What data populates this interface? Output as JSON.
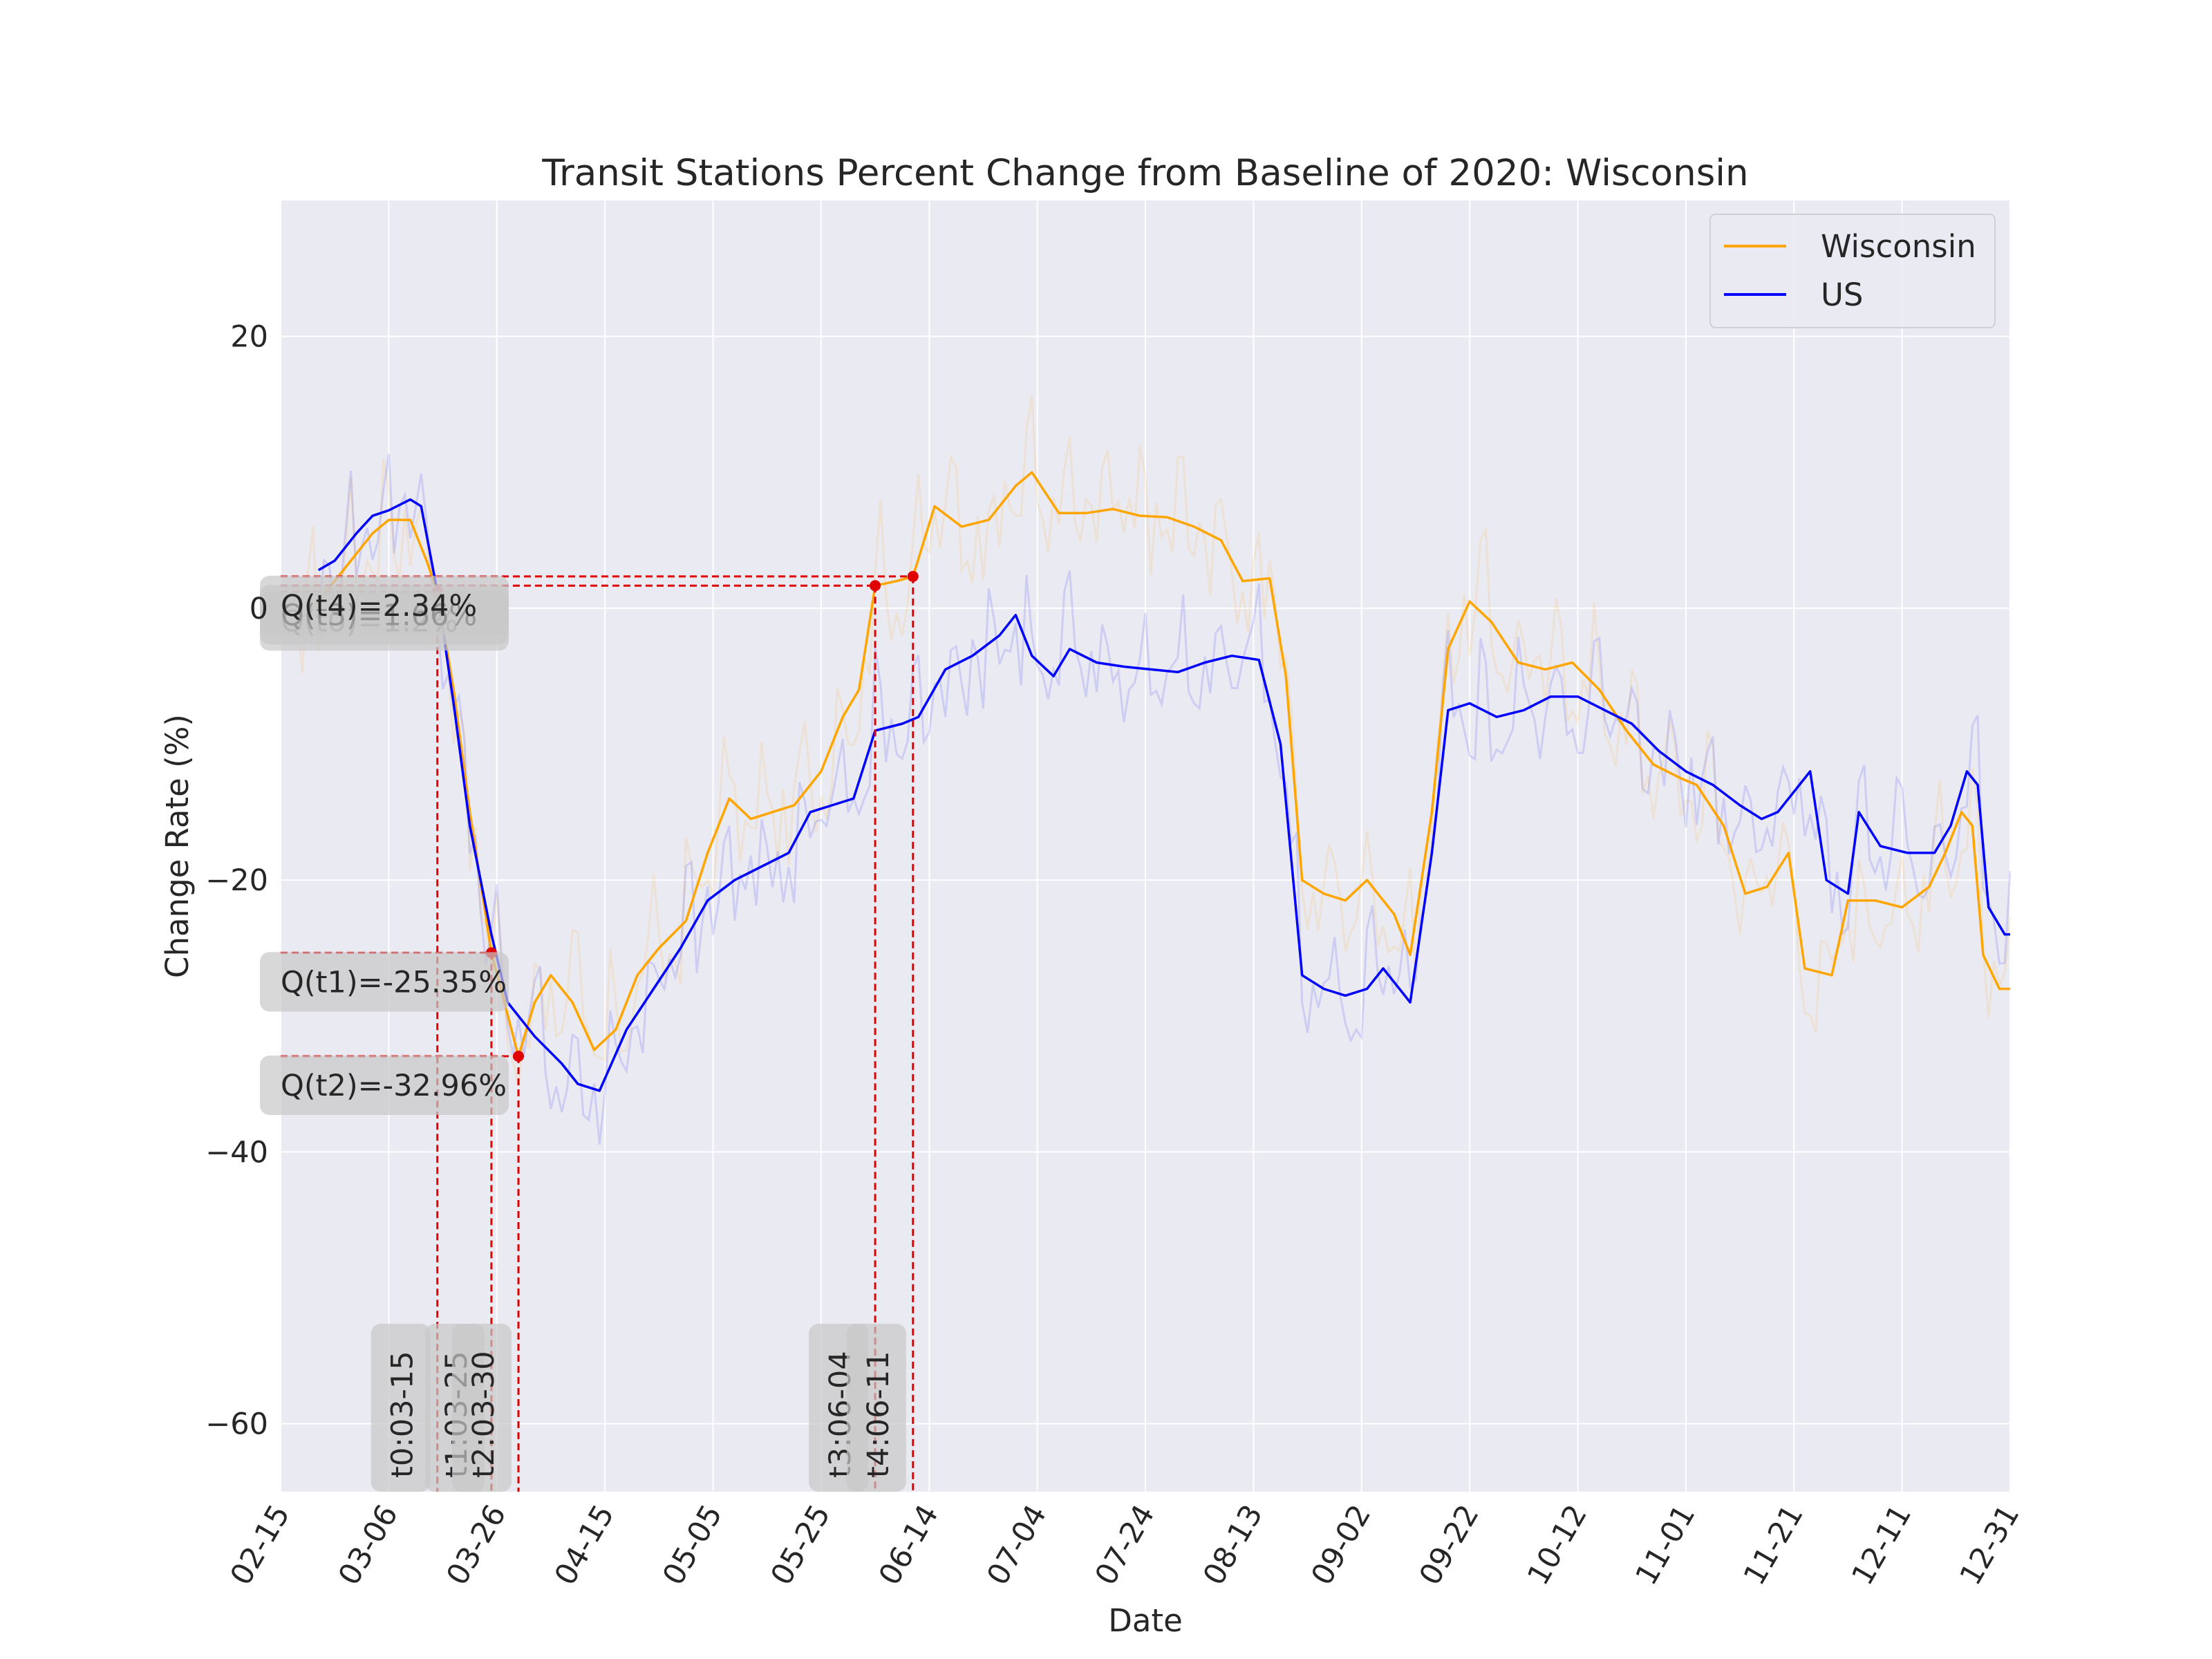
{
  "chart_data": {
    "type": "line",
    "title": "Transit Stations Percent Change from Baseline of 2020: Wisconsin",
    "xlabel": "Date",
    "ylabel": "Change Rate (%)",
    "x_range": [
      "2020-02-15",
      "2020-12-31"
    ],
    "ylim": [
      -65,
      30
    ],
    "x_ticks": [
      "02-15",
      "03-06",
      "03-26",
      "04-15",
      "05-05",
      "05-25",
      "06-14",
      "07-04",
      "07-24",
      "08-13",
      "09-02",
      "09-22",
      "10-12",
      "11-01",
      "11-21",
      "12-11",
      "12-31"
    ],
    "y_ticks": [
      20,
      0,
      -20,
      -40,
      -60
    ],
    "y_tick_labels": [
      "20",
      "0",
      "−20",
      "−40",
      "−60"
    ],
    "grid": true,
    "legend_position": "top-right",
    "series": [
      {
        "name": "Wisconsin",
        "color": "#FFA500",
        "smoothed": [
          [
            "2020-02-17",
            -1.5
          ],
          [
            "2020-02-22",
            0.5
          ],
          [
            "2020-02-27",
            3
          ],
          [
            "2020-03-03",
            5.5
          ],
          [
            "2020-03-06",
            6.5
          ],
          [
            "2020-03-10",
            6.5
          ],
          [
            "2020-03-13",
            3.5
          ],
          [
            "2020-03-15",
            1.2
          ],
          [
            "2020-03-18",
            -6
          ],
          [
            "2020-03-21",
            -15
          ],
          [
            "2020-03-25",
            -25.35
          ],
          [
            "2020-03-30",
            -32.96
          ],
          [
            "2020-04-02",
            -29
          ],
          [
            "2020-04-05",
            -27
          ],
          [
            "2020-04-09",
            -29
          ],
          [
            "2020-04-13",
            -32.5
          ],
          [
            "2020-04-17",
            -31
          ],
          [
            "2020-04-21",
            -27
          ],
          [
            "2020-04-25",
            -25
          ],
          [
            "2020-04-30",
            -23
          ],
          [
            "2020-05-04",
            -18
          ],
          [
            "2020-05-08",
            -14
          ],
          [
            "2020-05-12",
            -15.5
          ],
          [
            "2020-05-16",
            -15
          ],
          [
            "2020-05-20",
            -14.5
          ],
          [
            "2020-05-25",
            -12
          ],
          [
            "2020-05-29",
            -8
          ],
          [
            "2020-06-01",
            -6
          ],
          [
            "2020-06-04",
            1.66
          ],
          [
            "2020-06-08",
            2
          ],
          [
            "2020-06-11",
            2.34
          ],
          [
            "2020-06-15",
            7.5
          ],
          [
            "2020-06-20",
            6
          ],
          [
            "2020-06-25",
            6.5
          ],
          [
            "2020-06-30",
            9
          ],
          [
            "2020-07-03",
            10
          ],
          [
            "2020-07-08",
            7
          ],
          [
            "2020-07-13",
            7
          ],
          [
            "2020-07-18",
            7.3
          ],
          [
            "2020-07-23",
            6.8
          ],
          [
            "2020-07-28",
            6.7
          ],
          [
            "2020-08-02",
            6
          ],
          [
            "2020-08-07",
            5
          ],
          [
            "2020-08-11",
            2
          ],
          [
            "2020-08-16",
            2.2
          ],
          [
            "2020-08-19",
            -5
          ],
          [
            "2020-08-22",
            -20
          ],
          [
            "2020-08-26",
            -21
          ],
          [
            "2020-08-30",
            -21.5
          ],
          [
            "2020-09-03",
            -20
          ],
          [
            "2020-09-08",
            -22.5
          ],
          [
            "2020-09-11",
            -25.5
          ],
          [
            "2020-09-15",
            -15
          ],
          [
            "2020-09-18",
            -3
          ],
          [
            "2020-09-22",
            0.5
          ],
          [
            "2020-09-26",
            -1
          ],
          [
            "2020-10-01",
            -4
          ],
          [
            "2020-10-06",
            -4.5
          ],
          [
            "2020-10-11",
            -4
          ],
          [
            "2020-10-16",
            -6
          ],
          [
            "2020-10-21",
            -9
          ],
          [
            "2020-10-26",
            -11.5
          ],
          [
            "2020-10-31",
            -12.5
          ],
          [
            "2020-11-03",
            -13
          ],
          [
            "2020-11-08",
            -16
          ],
          [
            "2020-11-12",
            -21
          ],
          [
            "2020-11-16",
            -20.5
          ],
          [
            "2020-11-20",
            -18
          ],
          [
            "2020-11-23",
            -26.5
          ],
          [
            "2020-11-28",
            -27
          ],
          [
            "2020-12-01",
            -21.5
          ],
          [
            "2020-12-06",
            -21.5
          ],
          [
            "2020-12-11",
            -22
          ],
          [
            "2020-12-16",
            -20.5
          ],
          [
            "2020-12-19",
            -18
          ],
          [
            "2020-12-22",
            -15
          ],
          [
            "2020-12-24",
            -16
          ],
          [
            "2020-12-26",
            -25.5
          ],
          [
            "2020-12-29",
            -28
          ],
          [
            "2020-12-31",
            -28
          ]
        ]
      },
      {
        "name": "US",
        "color": "#0000FF",
        "smoothed": [
          [
            "2020-02-22",
            2.8
          ],
          [
            "2020-02-25",
            3.5
          ],
          [
            "2020-02-29",
            5.5
          ],
          [
            "2020-03-03",
            6.8
          ],
          [
            "2020-03-06",
            7.2
          ],
          [
            "2020-03-10",
            8
          ],
          [
            "2020-03-12",
            7.5
          ],
          [
            "2020-03-15",
            1.2
          ],
          [
            "2020-03-18",
            -7
          ],
          [
            "2020-03-21",
            -16
          ],
          [
            "2020-03-25",
            -24
          ],
          [
            "2020-03-28",
            -29
          ],
          [
            "2020-04-02",
            -31.5
          ],
          [
            "2020-04-07",
            -33.5
          ],
          [
            "2020-04-10",
            -35
          ],
          [
            "2020-04-14",
            -35.5
          ],
          [
            "2020-04-19",
            -31
          ],
          [
            "2020-04-24",
            -28
          ],
          [
            "2020-04-29",
            -25
          ],
          [
            "2020-05-04",
            -21.5
          ],
          [
            "2020-05-09",
            -20
          ],
          [
            "2020-05-14",
            -19
          ],
          [
            "2020-05-19",
            -18
          ],
          [
            "2020-05-23",
            -15
          ],
          [
            "2020-05-27",
            -14.5
          ],
          [
            "2020-05-31",
            -14
          ],
          [
            "2020-06-04",
            -9
          ],
          [
            "2020-06-09",
            -8.5
          ],
          [
            "2020-06-12",
            -8
          ],
          [
            "2020-06-17",
            -4.5
          ],
          [
            "2020-06-22",
            -3.5
          ],
          [
            "2020-06-27",
            -2
          ],
          [
            "2020-06-30",
            -0.5
          ],
          [
            "2020-07-03",
            -3.5
          ],
          [
            "2020-07-07",
            -5
          ],
          [
            "2020-07-10",
            -3
          ],
          [
            "2020-07-15",
            -4
          ],
          [
            "2020-07-20",
            -4.3
          ],
          [
            "2020-07-25",
            -4.5
          ],
          [
            "2020-07-30",
            -4.7
          ],
          [
            "2020-08-04",
            -4
          ],
          [
            "2020-08-09",
            -3.5
          ],
          [
            "2020-08-14",
            -3.8
          ],
          [
            "2020-08-18",
            -10
          ],
          [
            "2020-08-22",
            -27
          ],
          [
            "2020-08-26",
            -28
          ],
          [
            "2020-08-30",
            -28.5
          ],
          [
            "2020-09-03",
            -28
          ],
          [
            "2020-09-06",
            -26.5
          ],
          [
            "2020-09-11",
            -29
          ],
          [
            "2020-09-15",
            -18
          ],
          [
            "2020-09-18",
            -7.5
          ],
          [
            "2020-09-22",
            -7
          ],
          [
            "2020-09-27",
            -8
          ],
          [
            "2020-10-02",
            -7.5
          ],
          [
            "2020-10-07",
            -6.5
          ],
          [
            "2020-10-12",
            -6.5
          ],
          [
            "2020-10-17",
            -7.5
          ],
          [
            "2020-10-22",
            -8.5
          ],
          [
            "2020-10-27",
            -10.5
          ],
          [
            "2020-11-01",
            -12
          ],
          [
            "2020-11-06",
            -13
          ],
          [
            "2020-11-11",
            -14.5
          ],
          [
            "2020-11-15",
            -15.5
          ],
          [
            "2020-11-18",
            -15
          ],
          [
            "2020-11-22",
            -13
          ],
          [
            "2020-11-24",
            -12
          ],
          [
            "2020-11-27",
            -20
          ],
          [
            "2020-12-01",
            -21
          ],
          [
            "2020-12-03",
            -15
          ],
          [
            "2020-12-07",
            -17.5
          ],
          [
            "2020-12-12",
            -18
          ],
          [
            "2020-12-17",
            -18
          ],
          [
            "2020-12-20",
            -16
          ],
          [
            "2020-12-23",
            -12
          ],
          [
            "2020-12-25",
            -13
          ],
          [
            "2020-12-27",
            -22
          ],
          [
            "2020-12-30",
            -24
          ],
          [
            "2020-12-31",
            -24
          ]
        ]
      }
    ],
    "annotations": [
      {
        "id": "t0",
        "date": "2020-03-15",
        "value": 1.2,
        "label_x": "t0:03-15",
        "label_y": "Q(t0)=1.2%"
      },
      {
        "id": "t1",
        "date": "2020-03-25",
        "value": -25.35,
        "label_x": "t1:03-25",
        "label_y": "Q(t1)=-25.35%"
      },
      {
        "id": "t2",
        "date": "2020-03-30",
        "value": -32.96,
        "label_x": "t2:03-30",
        "label_y": "Q(t2)=-32.96%"
      },
      {
        "id": "t3",
        "date": "2020-06-04",
        "value": 1.66,
        "label_x": "t3:06-04",
        "label_y": "Q(t3)=1.66%"
      },
      {
        "id": "t4",
        "date": "2020-06-11",
        "value": 2.34,
        "label_x": "t4:06-11",
        "label_y": "Q(t4)=2.34%"
      }
    ],
    "annotation_color": "#E00000"
  }
}
